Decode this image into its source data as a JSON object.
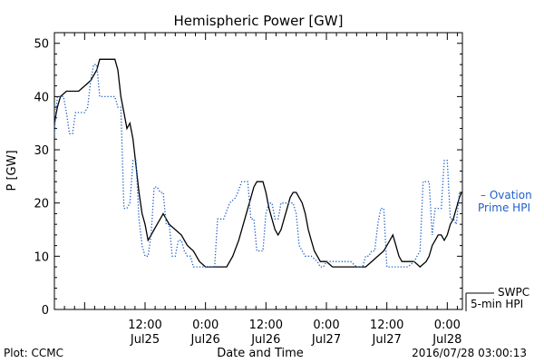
{
  "chart_data": {
    "type": "line",
    "title": "Hemispheric Power [GW]",
    "ylabel": "P [GW]",
    "xlabel": "Date and Time",
    "ylim": [
      0,
      52
    ],
    "yticks": [
      0,
      10,
      20,
      30,
      40,
      50
    ],
    "x_unit": "hours from 2016-07-24 18:00",
    "xlim": [
      0,
      81
    ],
    "xticks": [
      {
        "x": 18,
        "time": "12:00",
        "date": "Jul25"
      },
      {
        "x": 30,
        "time": "0:00",
        "date": "Jul26"
      },
      {
        "x": 42,
        "time": "12:00",
        "date": "Jul26"
      },
      {
        "x": 54,
        "time": "0:00",
        "date": "Jul27"
      },
      {
        "x": 66,
        "time": "12:00",
        "date": "Jul27"
      },
      {
        "x": 78,
        "time": "0:00",
        "date": "Jul28"
      }
    ],
    "grid": false,
    "series": [
      {
        "name": "SWPC 5-min HPI",
        "color": "#000000",
        "style": "solid",
        "legend": [
          "SWPC",
          "5-min HPI"
        ],
        "points": [
          [
            0,
            35
          ],
          [
            0.6,
            38
          ],
          [
            1.2,
            40
          ],
          [
            2.4,
            41
          ],
          [
            4.8,
            41
          ],
          [
            6.0,
            42
          ],
          [
            7.2,
            43
          ],
          [
            8.4,
            45
          ],
          [
            9.0,
            47
          ],
          [
            12.0,
            47
          ],
          [
            12.6,
            45
          ],
          [
            13.2,
            40
          ],
          [
            13.8,
            37
          ],
          [
            14.4,
            34
          ],
          [
            15.0,
            35
          ],
          [
            15.6,
            32
          ],
          [
            16.2,
            27
          ],
          [
            16.8,
            22
          ],
          [
            17.4,
            18
          ],
          [
            18.0,
            16
          ],
          [
            18.6,
            13
          ],
          [
            19.2,
            14
          ],
          [
            19.8,
            15
          ],
          [
            20.4,
            16
          ],
          [
            21.0,
            17
          ],
          [
            21.6,
            18
          ],
          [
            22.2,
            17
          ],
          [
            22.8,
            16
          ],
          [
            24.0,
            15
          ],
          [
            25.2,
            14
          ],
          [
            26.4,
            12
          ],
          [
            27.6,
            11
          ],
          [
            28.8,
            9
          ],
          [
            30.0,
            8
          ],
          [
            31.2,
            8
          ],
          [
            33.0,
            8
          ],
          [
            34.2,
            8
          ],
          [
            35.4,
            10
          ],
          [
            36.6,
            13
          ],
          [
            37.8,
            17
          ],
          [
            39.0,
            21
          ],
          [
            39.6,
            23
          ],
          [
            40.2,
            24
          ],
          [
            41.4,
            24
          ],
          [
            42.0,
            22
          ],
          [
            42.6,
            19
          ],
          [
            43.2,
            17
          ],
          [
            43.8,
            15
          ],
          [
            44.4,
            14
          ],
          [
            45.0,
            15
          ],
          [
            45.6,
            17
          ],
          [
            46.2,
            19
          ],
          [
            46.8,
            21
          ],
          [
            47.4,
            22
          ],
          [
            48.0,
            22
          ],
          [
            48.6,
            21
          ],
          [
            49.2,
            20
          ],
          [
            49.8,
            18
          ],
          [
            50.4,
            15
          ],
          [
            51.0,
            13
          ],
          [
            51.6,
            11
          ],
          [
            52.2,
            10
          ],
          [
            52.8,
            9
          ],
          [
            54.0,
            9
          ],
          [
            55.2,
            8
          ],
          [
            56.4,
            8
          ],
          [
            58.2,
            8
          ],
          [
            60.0,
            8
          ],
          [
            61.8,
            8
          ],
          [
            63.0,
            9
          ],
          [
            64.2,
            10
          ],
          [
            65.4,
            11
          ],
          [
            66.6,
            13
          ],
          [
            67.2,
            14
          ],
          [
            67.8,
            12
          ],
          [
            68.4,
            10
          ],
          [
            69.0,
            9
          ],
          [
            70.2,
            9
          ],
          [
            71.4,
            9
          ],
          [
            72.6,
            8
          ],
          [
            73.8,
            9
          ],
          [
            74.4,
            10
          ],
          [
            75.0,
            12
          ],
          [
            75.6,
            13
          ],
          [
            76.2,
            14
          ],
          [
            76.8,
            14
          ],
          [
            77.4,
            13
          ],
          [
            78.0,
            14
          ],
          [
            78.6,
            16
          ],
          [
            79.2,
            17
          ],
          [
            79.8,
            19
          ],
          [
            80.4,
            21
          ],
          [
            80.8,
            22
          ]
        ]
      },
      {
        "name": "Ovation Prime HPI",
        "color": "#1f5fc8",
        "style": "dotted",
        "legend": [
          "– Ovation",
          "Prime HPI"
        ],
        "points": [
          [
            0,
            33
          ],
          [
            0.3,
            37
          ],
          [
            0.6,
            40
          ],
          [
            1.2,
            40
          ],
          [
            1.8,
            40
          ],
          [
            2.4,
            37
          ],
          [
            3.0,
            33
          ],
          [
            3.6,
            33
          ],
          [
            4.2,
            37
          ],
          [
            6.0,
            37
          ],
          [
            6.6,
            38
          ],
          [
            7.2,
            43
          ],
          [
            7.8,
            46
          ],
          [
            8.4,
            46
          ],
          [
            9.0,
            40
          ],
          [
            10.2,
            40
          ],
          [
            11.4,
            40
          ],
          [
            12.0,
            40
          ],
          [
            12.6,
            38
          ],
          [
            13.2,
            38
          ],
          [
            13.8,
            19
          ],
          [
            14.4,
            19
          ],
          [
            15.0,
            20
          ],
          [
            15.6,
            28
          ],
          [
            16.2,
            28
          ],
          [
            16.8,
            17
          ],
          [
            17.4,
            12
          ],
          [
            18.0,
            10
          ],
          [
            18.6,
            10
          ],
          [
            19.2,
            14
          ],
          [
            19.8,
            23
          ],
          [
            20.4,
            23
          ],
          [
            21.0,
            22
          ],
          [
            21.6,
            22
          ],
          [
            22.2,
            16
          ],
          [
            22.8,
            16
          ],
          [
            23.4,
            10
          ],
          [
            24.0,
            10
          ],
          [
            24.6,
            13
          ],
          [
            25.2,
            13
          ],
          [
            25.8,
            11
          ],
          [
            26.4,
            10
          ],
          [
            27.0,
            10
          ],
          [
            27.6,
            8
          ],
          [
            28.8,
            8
          ],
          [
            30.0,
            8
          ],
          [
            31.2,
            8
          ],
          [
            31.8,
            8
          ],
          [
            32.4,
            17
          ],
          [
            33.6,
            17
          ],
          [
            34.8,
            20
          ],
          [
            36.0,
            21
          ],
          [
            37.2,
            24
          ],
          [
            37.8,
            24
          ],
          [
            38.4,
            24
          ],
          [
            39.0,
            17
          ],
          [
            39.6,
            17
          ],
          [
            40.2,
            11
          ],
          [
            41.4,
            11
          ],
          [
            42.0,
            18
          ],
          [
            42.6,
            20
          ],
          [
            43.2,
            20
          ],
          [
            43.8,
            17
          ],
          [
            44.4,
            17
          ],
          [
            45.0,
            20
          ],
          [
            46.2,
            20
          ],
          [
            47.4,
            20
          ],
          [
            48.0,
            18
          ],
          [
            48.6,
            12
          ],
          [
            49.8,
            10
          ],
          [
            51.0,
            10
          ],
          [
            52.2,
            9
          ],
          [
            52.8,
            8
          ],
          [
            53.4,
            8
          ],
          [
            54.0,
            9
          ],
          [
            55.2,
            9
          ],
          [
            57.0,
            9
          ],
          [
            58.8,
            9
          ],
          [
            60.0,
            8
          ],
          [
            61.2,
            8
          ],
          [
            61.8,
            10
          ],
          [
            62.4,
            10
          ],
          [
            63.0,
            11
          ],
          [
            63.6,
            11
          ],
          [
            64.2,
            16
          ],
          [
            64.8,
            19
          ],
          [
            65.4,
            19
          ],
          [
            66.0,
            8
          ],
          [
            68.4,
            8
          ],
          [
            70.2,
            8
          ],
          [
            71.4,
            9
          ],
          [
            72.0,
            10
          ],
          [
            72.6,
            11
          ],
          [
            73.2,
            24
          ],
          [
            74.4,
            24
          ],
          [
            75.0,
            14
          ],
          [
            75.6,
            19
          ],
          [
            76.8,
            19
          ],
          [
            77.4,
            28
          ],
          [
            78.0,
            28
          ],
          [
            78.6,
            17
          ],
          [
            79.2,
            17
          ],
          [
            79.8,
            16
          ],
          [
            80.4,
            22
          ]
        ]
      }
    ]
  },
  "footer": {
    "plot_credit": "Plot: CCMC",
    "timestamp": "2016/07/28 03:00:13"
  }
}
